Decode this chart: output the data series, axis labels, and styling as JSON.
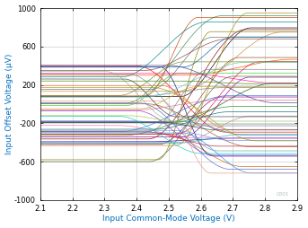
{
  "xlabel": "Input Common-Mode Voltage (V)",
  "ylabel": "Input Offset Voltage (µV)",
  "xlim": [
    2.1,
    2.9
  ],
  "ylim": [
    -1000,
    1000
  ],
  "xticks": [
    2.1,
    2.2,
    2.3,
    2.4,
    2.5,
    2.6,
    2.7,
    2.8,
    2.9
  ],
  "yticks": [
    -1000,
    -600,
    -200,
    200,
    600,
    1000
  ],
  "watermark": "C001",
  "background": "#ffffff",
  "grid_color": "#b0b0b0",
  "seed": 42,
  "n_traces": 55,
  "x_flatten": 2.85
}
